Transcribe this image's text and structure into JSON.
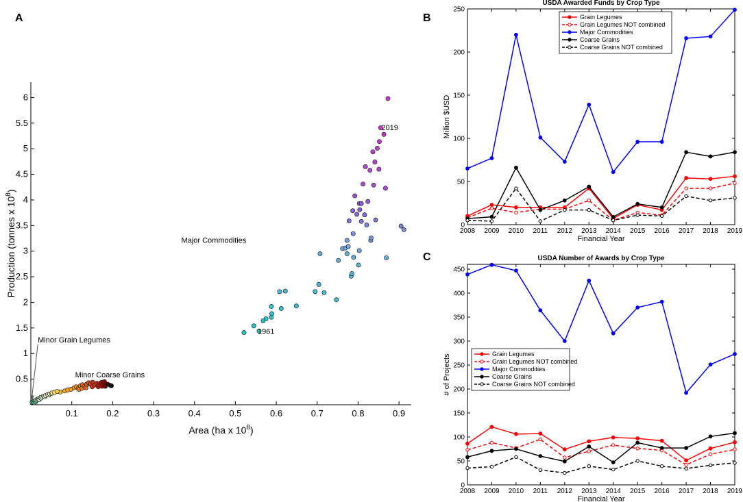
{
  "panels": {
    "a": "A",
    "b": "B",
    "c": "C"
  },
  "chart_data": [
    {
      "id": "A",
      "type": "scatter",
      "title": "",
      "xlabel": "Area (ha x 10",
      "xlabel_sup": "8",
      "xlabel_end": ")",
      "ylabel": "Production (tonnes x 10",
      "ylabel_sup": "8",
      "ylabel_end": ")",
      "xlim": [
        0,
        0.93
      ],
      "ylim": [
        0,
        6.3
      ],
      "xticks": [
        0.1,
        0.2,
        0.3,
        0.4,
        0.5,
        0.6,
        0.7,
        0.8,
        0.9
      ],
      "xtick_labels": [
        "0.1",
        "0.2",
        "0.3",
        "0.4",
        "0.5",
        "0.6",
        "0.7",
        "0.8",
        "0.9"
      ],
      "yticks": [
        0.5,
        1,
        1.5,
        2,
        2.5,
        3,
        3.5,
        4,
        4.5,
        5,
        5.5,
        6
      ],
      "ytick_labels": [
        "0.5",
        "1",
        "1.5",
        "2",
        "2.5",
        "3",
        "3.5",
        "4",
        "4.5",
        "5",
        "5.5",
        "6"
      ],
      "annotations": [
        {
          "text": "2019",
          "x": 0.862,
          "y": 5.42
        },
        {
          "text": "1961",
          "x": 0.558,
          "y": 1.44
        },
        {
          "text": "Major Commodities",
          "x": 0.53,
          "y": 3.22
        },
        {
          "text": "Minor Coarse Grains",
          "x": 0.1,
          "y": 0.59
        },
        {
          "text": "Minor Grain Legumes",
          "x": 0.017,
          "y": 1.27
        }
      ],
      "arrow": {
        "from": [
          0.017,
          1.18
        ],
        "to": [
          0.003,
          0.06
        ]
      },
      "major_commodities": [
        [
          0.521,
          1.41
        ],
        [
          0.545,
          1.54
        ],
        [
          0.558,
          1.44
        ],
        [
          0.568,
          1.64
        ],
        [
          0.575,
          1.68
        ],
        [
          0.588,
          1.71
        ],
        [
          0.588,
          1.92
        ],
        [
          0.589,
          1.78
        ],
        [
          0.608,
          2.21
        ],
        [
          0.612,
          1.88
        ],
        [
          0.622,
          2.22
        ],
        [
          0.649,
          1.93
        ],
        [
          0.695,
          2.21
        ],
        [
          0.704,
          2.35
        ],
        [
          0.707,
          2.95
        ],
        [
          0.717,
          2.19
        ],
        [
          0.747,
          2.05
        ],
        [
          0.752,
          2.82
        ],
        [
          0.762,
          3.05
        ],
        [
          0.769,
          3.06
        ],
        [
          0.773,
          2.95
        ],
        [
          0.773,
          3.21
        ],
        [
          0.776,
          3.09
        ],
        [
          0.778,
          3.59
        ],
        [
          0.783,
          2.51
        ],
        [
          0.785,
          2.56
        ],
        [
          0.787,
          3.79
        ],
        [
          0.788,
          3.34
        ],
        [
          0.789,
          2.88
        ],
        [
          0.792,
          4.08
        ],
        [
          0.797,
          3.72
        ],
        [
          0.801,
          2.73
        ],
        [
          0.803,
          3.93
        ],
        [
          0.803,
          3.01
        ],
        [
          0.804,
          3.81
        ],
        [
          0.808,
          3.93
        ],
        [
          0.808,
          3.58
        ],
        [
          0.812,
          4.31
        ],
        [
          0.816,
          3.71
        ],
        [
          0.818,
          4.65
        ],
        [
          0.821,
          3.51
        ],
        [
          0.824,
          3.97
        ],
        [
          0.829,
          4.58
        ],
        [
          0.831,
          3.21
        ],
        [
          0.832,
          3.26
        ],
        [
          0.836,
          4.94
        ],
        [
          0.838,
          4.29
        ],
        [
          0.841,
          4.74
        ],
        [
          0.843,
          3.61
        ],
        [
          0.847,
          5.01
        ],
        [
          0.851,
          4.6
        ],
        [
          0.852,
          5.14
        ],
        [
          0.855,
          5.41
        ],
        [
          0.863,
          5.28
        ],
        [
          0.867,
          4.23
        ],
        [
          0.869,
          2.87
        ],
        [
          0.873,
          5.98
        ],
        [
          0.905,
          3.49
        ],
        [
          0.912,
          3.42
        ]
      ],
      "minor_coarse_grains": [
        [
          0.072,
          0.25
        ],
        [
          0.083,
          0.27
        ],
        [
          0.09,
          0.29
        ],
        [
          0.098,
          0.3
        ],
        [
          0.106,
          0.33
        ],
        [
          0.111,
          0.35
        ],
        [
          0.116,
          0.32
        ],
        [
          0.121,
          0.37
        ],
        [
          0.126,
          0.39
        ],
        [
          0.131,
          0.36
        ],
        [
          0.136,
          0.4
        ],
        [
          0.141,
          0.43
        ],
        [
          0.145,
          0.4
        ],
        [
          0.151,
          0.44
        ],
        [
          0.155,
          0.38
        ],
        [
          0.161,
          0.42
        ],
        [
          0.166,
          0.39
        ],
        [
          0.171,
          0.43
        ],
        [
          0.174,
          0.44
        ],
        [
          0.178,
          0.41
        ],
        [
          0.182,
          0.36
        ],
        [
          0.188,
          0.4
        ],
        [
          0.194,
          0.38
        ],
        [
          0.197,
          0.37
        ],
        [
          0.165,
          0.35
        ],
        [
          0.174,
          0.36
        ],
        [
          0.18,
          0.45
        ],
        [
          0.15,
          0.35
        ],
        [
          0.135,
          0.33
        ],
        [
          0.125,
          0.32
        ],
        [
          0.118,
          0.3
        ],
        [
          0.146,
          0.41
        ]
      ],
      "minor_grain_legumes": [
        [
          0.003,
          0.05
        ],
        [
          0.007,
          0.07
        ],
        [
          0.01,
          0.08
        ],
        [
          0.013,
          0.09
        ],
        [
          0.016,
          0.11
        ],
        [
          0.019,
          0.12
        ],
        [
          0.023,
          0.14
        ],
        [
          0.027,
          0.15
        ],
        [
          0.031,
          0.17
        ],
        [
          0.036,
          0.18
        ],
        [
          0.041,
          0.2
        ],
        [
          0.046,
          0.21
        ],
        [
          0.052,
          0.23
        ],
        [
          0.058,
          0.24
        ],
        [
          0.064,
          0.26
        ],
        [
          0.02,
          0.1
        ],
        [
          0.012,
          0.06
        ],
        [
          0.008,
          0.04
        ],
        [
          0.025,
          0.13
        ],
        [
          0.034,
          0.16
        ],
        [
          0.044,
          0.19
        ],
        [
          0.05,
          0.22
        ]
      ]
    },
    {
      "id": "B",
      "type": "line",
      "title": "USDA Awarded Funds by Crop Type",
      "xlabel": "Financial Year",
      "ylabel": "Million $USD",
      "categories": [
        "2008",
        "2009",
        "2010",
        "2011",
        "2012",
        "2013",
        "2014",
        "2015",
        "2016",
        "2017",
        "2018",
        "2019"
      ],
      "ylim": [
        0,
        250
      ],
      "yticks": [
        0,
        50,
        100,
        150,
        200,
        250
      ],
      "ytick_labels": [
        "0",
        "50",
        "100",
        "150",
        "200",
        "250"
      ],
      "series": [
        {
          "name": "Grain Legumes",
          "color": "#ff0000",
          "dash": "solid",
          "marker": "filled",
          "values": [
            10,
            23,
            20,
            20,
            20,
            42,
            7,
            23,
            17,
            54,
            53,
            56
          ]
        },
        {
          "name": "Grain Legumes NOT combined",
          "color": "#ff0000",
          "dash": "dashed",
          "marker": "open",
          "values": [
            8,
            19,
            14,
            18,
            18,
            28,
            5,
            14,
            11,
            42,
            42,
            48
          ]
        },
        {
          "name": "Major Commodities",
          "color": "#0000ff",
          "dash": "solid",
          "marker": "filled",
          "values": [
            65,
            77,
            220,
            101,
            73,
            139,
            61,
            96,
            96,
            216,
            218,
            249
          ]
        },
        {
          "name": "Coarse Grains",
          "color": "#000000",
          "dash": "solid",
          "marker": "filled",
          "values": [
            7,
            9,
            66,
            17,
            28,
            44,
            9,
            24,
            20,
            84,
            79,
            84
          ]
        },
        {
          "name": "Coarse Grains NOT combined",
          "color": "#000000",
          "dash": "dashed",
          "marker": "open",
          "values": [
            5,
            4,
            42,
            4,
            17,
            17,
            5,
            11,
            10,
            33,
            28,
            31
          ]
        }
      ]
    },
    {
      "id": "C",
      "type": "line",
      "title": "USDA Number of Awards by Crop Type",
      "xlabel": "Financial Year",
      "ylabel": "# of Projects",
      "categories": [
        "2008",
        "2009",
        "2010",
        "2011",
        "2012",
        "2013",
        "2014",
        "2015",
        "2016",
        "2017",
        "2018",
        "2019"
      ],
      "ylim": [
        0,
        460
      ],
      "yticks": [
        0,
        50,
        100,
        150,
        200,
        250,
        300,
        350,
        400,
        450
      ],
      "ytick_labels": [
        "0",
        "50",
        "100",
        "150",
        "200",
        "250",
        "300",
        "350",
        "400",
        "450"
      ],
      "series": [
        {
          "name": "Grain Legumes",
          "color": "#ff0000",
          "dash": "solid",
          "marker": "filled",
          "values": [
            86,
            121,
            106,
            107,
            74,
            91,
            99,
            97,
            92,
            51,
            76,
            89
          ]
        },
        {
          "name": "Grain Legumes NOT combined",
          "color": "#ff0000",
          "dash": "dashed",
          "marker": "open",
          "values": [
            73,
            88,
            77,
            95,
            57,
            70,
            83,
            76,
            72,
            42,
            64,
            74
          ]
        },
        {
          "name": "Major Commodities",
          "color": "#0000ff",
          "dash": "solid",
          "marker": "filled",
          "values": [
            439,
            459,
            447,
            364,
            300,
            426,
            316,
            370,
            382,
            192,
            251,
            273
          ]
        },
        {
          "name": "Coarse Grains",
          "color": "#000000",
          "dash": "solid",
          "marker": "filled",
          "values": [
            58,
            71,
            75,
            60,
            49,
            80,
            47,
            88,
            77,
            77,
            101,
            108
          ]
        },
        {
          "name": "Coarse Grains NOT combined",
          "color": "#000000",
          "dash": "dashed",
          "marker": "open",
          "values": [
            35,
            38,
            58,
            31,
            25,
            39,
            32,
            50,
            39,
            34,
            41,
            46
          ]
        }
      ]
    }
  ]
}
